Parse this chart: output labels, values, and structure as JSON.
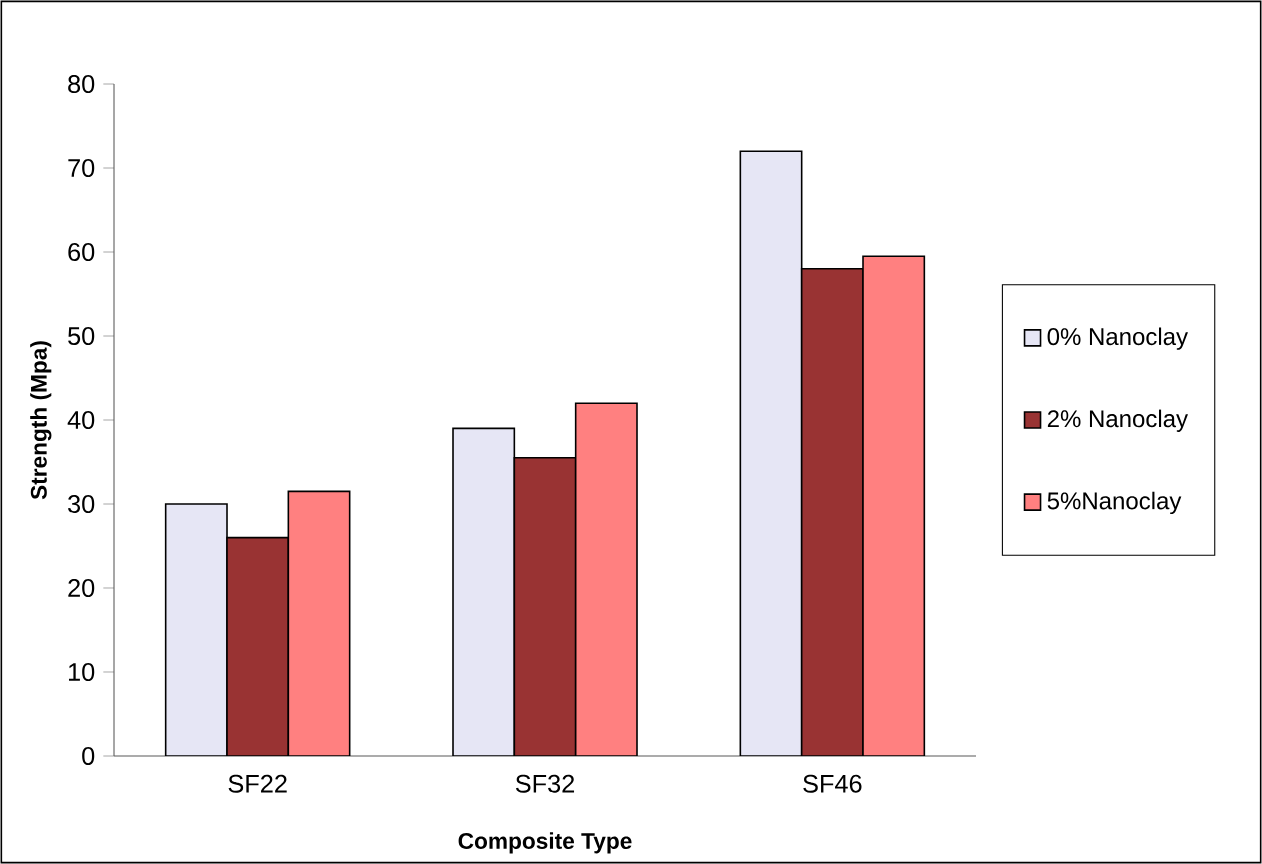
{
  "chart_data": {
    "type": "bar",
    "xlabel": "Composite Type",
    "ylabel": "Strength (Mpa)",
    "categories": [
      "SF22",
      "SF32",
      "SF46"
    ],
    "series": [
      {
        "name": "0% Nanoclay",
        "color": "#e6e6f5",
        "values": [
          30,
          39,
          72
        ]
      },
      {
        "name": "2% Nanoclay",
        "color": "#993333",
        "values": [
          26,
          35.5,
          58
        ]
      },
      {
        "name": "5%Nanoclay",
        "color": "#ff8080",
        "values": [
          31.5,
          42,
          59.5
        ]
      }
    ],
    "ylim": [
      0,
      80
    ],
    "yticks": [
      0,
      10,
      20,
      30,
      40,
      50,
      60,
      70,
      80
    ],
    "legend": "right",
    "grid": false
  }
}
